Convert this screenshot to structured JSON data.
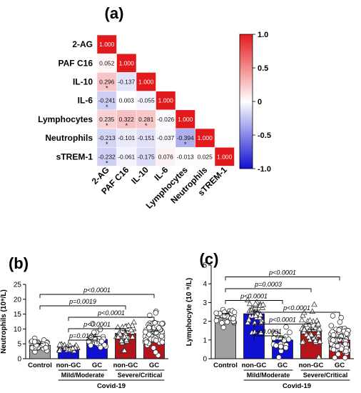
{
  "panels": {
    "a": "(a)",
    "b": "(b)",
    "c": "(c)"
  },
  "chart_data": [
    {
      "type": "heatmap",
      "panel": "(a)",
      "variables": [
        "2-AG",
        "PAF C16",
        "IL-10",
        "IL-6",
        "Lymphocytes",
        "Neutrophils",
        "sTREM-1"
      ],
      "matrix_lower": [
        [
          "1.000"
        ],
        [
          "0.052",
          "1.000"
        ],
        [
          "0.296",
          "-0.137",
          "1.000"
        ],
        [
          "-0.241",
          "0.003",
          "-0.055",
          "1.000"
        ],
        [
          "0.235",
          "0.322",
          "0.281",
          "-0.026",
          "1.000"
        ],
        [
          "-0.213",
          "-0.101",
          "-0.151",
          "-0.037",
          "-0.394",
          "1.000"
        ],
        [
          "-0.232",
          "-0.061",
          "-0.175",
          "0.076",
          "-0.013",
          "0.025",
          "1.000"
        ]
      ],
      "significant": [
        [
          2,
          0
        ],
        [
          3,
          0
        ],
        [
          4,
          0
        ],
        [
          4,
          1
        ],
        [
          4,
          2
        ],
        [
          5,
          0
        ],
        [
          5,
          4
        ],
        [
          6,
          0
        ]
      ],
      "colorbar": {
        "min": -1.0,
        "max": 1.0,
        "ticks": [
          "1.0",
          "0.5",
          "0",
          "-0.5",
          "-1.0"
        ],
        "colors": {
          "high": "#e31a1c",
          "mid": "#ffffff",
          "low": "#1010d0"
        }
      },
      "annotation_mark": "*"
    },
    {
      "type": "bar",
      "panel": "(b)",
      "ylabel": "Neutrophils (10⁹/L)",
      "ylim": [
        0,
        25
      ],
      "yticks": [
        "0",
        "5",
        "10",
        "15",
        "20",
        "25"
      ],
      "categories": [
        "Control",
        "non-GC",
        "GC",
        "non-GC",
        "GC"
      ],
      "values": [
        4.5,
        3.6,
        6.5,
        8.5,
        8.6
      ],
      "colors": [
        "#a0a0a0",
        "#1010d0",
        "#1010d0",
        "#b2161a",
        "#b2161a"
      ],
      "markers": [
        "circle",
        "triangle",
        "circle",
        "triangle",
        "circle"
      ],
      "group_labels": [
        "Mild/Moderate",
        "Severe/Critical"
      ],
      "super_label": "Covid-19",
      "brackets": [
        {
          "from": 1,
          "to": 2,
          "label": "p=0.0164"
        },
        {
          "from": 1,
          "to": 3,
          "label": "p<0.0001"
        },
        {
          "from": 1,
          "to": 4,
          "label": "p<0.0001"
        },
        {
          "from": 0,
          "to": 3,
          "label": "p=0.0019"
        },
        {
          "from": 0,
          "to": 4,
          "label": "p<0.0001"
        }
      ]
    },
    {
      "type": "bar",
      "panel": "(c)",
      "ylabel": "Lymphocyte (10 ⁹/L)",
      "ylim": [
        0,
        5
      ],
      "yticks": [
        "0",
        "1",
        "2",
        "3",
        "4",
        "5"
      ],
      "categories": [
        "Control",
        "non-GC",
        "GC",
        "non-GC",
        "GC"
      ],
      "values": [
        2.3,
        2.4,
        1.0,
        1.45,
        1.0
      ],
      "colors": [
        "#a0a0a0",
        "#1010d0",
        "#1010d0",
        "#b2161a",
        "#b2161a"
      ],
      "markers": [
        "circle",
        "triangle",
        "circle",
        "triangle",
        "circle"
      ],
      "group_labels": [
        "Mild/Moderate",
        "Severe/Critical"
      ],
      "super_label": "Covid-19",
      "brackets": [
        {
          "from": 1,
          "to": 2,
          "label": "p<0.0001"
        },
        {
          "from": 1,
          "to": 3,
          "label": "p<0.0001"
        },
        {
          "from": 1,
          "to": 4,
          "label": "p<0.0001"
        },
        {
          "from": 0,
          "to": 2,
          "label": "p<0.0001"
        },
        {
          "from": 0,
          "to": 3,
          "label": "p=0.0003"
        },
        {
          "from": 0,
          "to": 4,
          "label": "p<0.0001"
        }
      ]
    }
  ]
}
